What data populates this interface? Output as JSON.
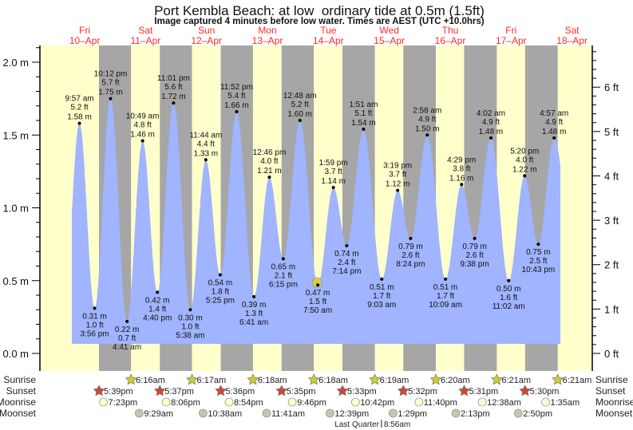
{
  "title": "Port Kembla Beach: at low  ordinary tide at 0.5m (1.5ft)",
  "subtitle": "Image captured 4 minutes before low water. Times are AEST (UTC +10.0hrs)",
  "colors": {
    "day": "#ffffcc",
    "night": "#a6a6a6",
    "tide": "#a0b4ff",
    "day_label": "#ff2a2a",
    "sunrise": "#cccc33",
    "sunset": "#cc4a33",
    "moonrise": "#ffffcc",
    "moonset": "#c8c4b0",
    "now_marker": "#d8d040"
  },
  "chart_data": {
    "type": "area",
    "title": "Port Kembla Beach: at low  ordinary tide at 0.5m (1.5ft)",
    "days": [
      {
        "dow": "Fri",
        "date": "10–Apr"
      },
      {
        "dow": "Sat",
        "date": "11–Apr"
      },
      {
        "dow": "Sun",
        "date": "12–Apr"
      },
      {
        "dow": "Mon",
        "date": "13–Apr"
      },
      {
        "dow": "Tue",
        "date": "14–Apr"
      },
      {
        "dow": "Wed",
        "date": "15–Apr"
      },
      {
        "dow": "Thu",
        "date": "16–Apr"
      },
      {
        "dow": "Fri",
        "date": "17–Apr"
      },
      {
        "dow": "Sat",
        "date": "18–Apr"
      }
    ],
    "y_left": {
      "unit": "m",
      "range": [
        -0.02,
        2.12
      ],
      "ticks": [
        "0.0 m",
        "0.5 m",
        "1.0 m",
        "1.5 m",
        "2.0 m"
      ]
    },
    "y_right": {
      "unit": "ft",
      "ticks": [
        "0 ft",
        "1 ft",
        "2 ft",
        "3 ft",
        "4 ft",
        "5 ft",
        "6 ft"
      ]
    },
    "extremes": [
      {
        "day": 0,
        "type": "high",
        "time": "9:57 am",
        "m": 1.58,
        "ft": "5.2 ft"
      },
      {
        "day": 0,
        "type": "low",
        "time": "3:56 pm",
        "m": 0.31,
        "ft": "1.0 ft"
      },
      {
        "day": 0,
        "type": "high",
        "time": "10:12 pm",
        "m": 1.75,
        "ft": "5.7 ft"
      },
      {
        "day": 1,
        "type": "low",
        "time": "4:41 am",
        "m": 0.22,
        "ft": "0.7 ft"
      },
      {
        "day": 1,
        "type": "high",
        "time": "10:49 am",
        "m": 1.46,
        "ft": "4.8 ft"
      },
      {
        "day": 1,
        "type": "low",
        "time": "4:40 pm",
        "m": 0.42,
        "ft": "1.4 ft"
      },
      {
        "day": 1,
        "type": "high",
        "time": "11:01 pm",
        "m": 1.72,
        "ft": "5.6 ft"
      },
      {
        "day": 2,
        "type": "low",
        "time": "5:38 am",
        "m": 0.3,
        "ft": "1.0 ft"
      },
      {
        "day": 2,
        "type": "high",
        "time": "11:44 am",
        "m": 1.33,
        "ft": "4.4 ft"
      },
      {
        "day": 2,
        "type": "low",
        "time": "5:25 pm",
        "m": 0.54,
        "ft": "1.8 ft"
      },
      {
        "day": 2,
        "type": "high",
        "time": "11:52 pm",
        "m": 1.66,
        "ft": "5.4 ft"
      },
      {
        "day": 3,
        "type": "low",
        "time": "6:41 am",
        "m": 0.39,
        "ft": "1.3 ft"
      },
      {
        "day": 3,
        "type": "high",
        "time": "12:46 pm",
        "m": 1.21,
        "ft": "4.0 ft"
      },
      {
        "day": 3,
        "type": "low",
        "time": "6:15 pm",
        "m": 0.65,
        "ft": "2.1 ft"
      },
      {
        "day": 4,
        "type": "high",
        "time": "12:48 am",
        "m": 1.6,
        "ft": "5.2 ft"
      },
      {
        "day": 4,
        "type": "low",
        "time": "7:50 am",
        "m": 0.47,
        "ft": "1.5 ft",
        "current": true
      },
      {
        "day": 4,
        "type": "high",
        "time": "1:59 pm",
        "m": 1.14,
        "ft": "3.7 ft"
      },
      {
        "day": 4,
        "type": "low",
        "time": "7:14 pm",
        "m": 0.74,
        "ft": "2.4 ft"
      },
      {
        "day": 5,
        "type": "high",
        "time": "1:51 am",
        "m": 1.54,
        "ft": "5.1 ft"
      },
      {
        "day": 5,
        "type": "low",
        "time": "9:03 am",
        "m": 0.51,
        "ft": "1.7 ft"
      },
      {
        "day": 5,
        "type": "high",
        "time": "3:19 pm",
        "m": 1.12,
        "ft": "3.7 ft"
      },
      {
        "day": 5,
        "type": "low",
        "time": "8:24 pm",
        "m": 0.79,
        "ft": "2.6 ft"
      },
      {
        "day": 6,
        "type": "high",
        "time": "2:58 am",
        "m": 1.5,
        "ft": "4.9 ft"
      },
      {
        "day": 6,
        "type": "low",
        "time": "10:09 am",
        "m": 0.51,
        "ft": "1.7 ft"
      },
      {
        "day": 6,
        "type": "high",
        "time": "4:29 pm",
        "m": 1.16,
        "ft": "3.8 ft"
      },
      {
        "day": 6,
        "type": "low",
        "time": "9:38 pm",
        "m": 0.79,
        "ft": "2.6 ft"
      },
      {
        "day": 7,
        "type": "high",
        "time": "4:02 am",
        "m": 1.48,
        "ft": "4.9 ft"
      },
      {
        "day": 7,
        "type": "low",
        "time": "11:02 am",
        "m": 0.5,
        "ft": "1.6 ft"
      },
      {
        "day": 7,
        "type": "high",
        "time": "5:20 pm",
        "m": 1.22,
        "ft": "4.0 ft"
      },
      {
        "day": 7,
        "type": "low",
        "time": "10:43 pm",
        "m": 0.75,
        "ft": "2.5 ft"
      },
      {
        "day": 8,
        "type": "high",
        "time": "4:57 am",
        "m": 1.48,
        "ft": "4.9 ft"
      }
    ]
  },
  "rows": {
    "sunrise_label": "Sunrise",
    "sunset_label": "Sunset",
    "moonrise_label": "Moonrise",
    "moonset_label": "Moonset",
    "sunrise": [
      {
        "day": 1,
        "time": "6:16am"
      },
      {
        "day": 2,
        "time": "6:17am"
      },
      {
        "day": 3,
        "time": "6:18am"
      },
      {
        "day": 4,
        "time": "6:18am"
      },
      {
        "day": 5,
        "time": "6:19am"
      },
      {
        "day": 6,
        "time": "6:20am"
      },
      {
        "day": 7,
        "time": "6:21am"
      },
      {
        "day": 8,
        "time": "6:21am"
      }
    ],
    "sunset": [
      {
        "day": 0,
        "time": "5:39pm"
      },
      {
        "day": 1,
        "time": "5:37pm"
      },
      {
        "day": 2,
        "time": "5:36pm"
      },
      {
        "day": 3,
        "time": "5:35pm"
      },
      {
        "day": 4,
        "time": "5:33pm"
      },
      {
        "day": 5,
        "time": "5:32pm"
      },
      {
        "day": 6,
        "time": "5:31pm"
      },
      {
        "day": 7,
        "time": "5:30pm"
      }
    ],
    "moonrise": [
      {
        "day": 0,
        "time": "7:23pm"
      },
      {
        "day": 1,
        "time": "8:06pm"
      },
      {
        "day": 2,
        "time": "8:54pm"
      },
      {
        "day": 3,
        "time": "9:46pm"
      },
      {
        "day": 4,
        "time": "10:42pm"
      },
      {
        "day": 5,
        "time": "11:40pm"
      },
      {
        "day": 7,
        "time": "12:38am"
      },
      {
        "day": 8,
        "time": "1:35am"
      }
    ],
    "moonset": [
      {
        "day": 1,
        "time": "9:29am"
      },
      {
        "day": 2,
        "time": "10:38am"
      },
      {
        "day": 3,
        "time": "11:41am"
      },
      {
        "day": 4,
        "time": "12:39pm"
      },
      {
        "day": 5,
        "time": "1:29pm"
      },
      {
        "day": 6,
        "time": "2:13pm"
      },
      {
        "day": 7,
        "time": "2:50pm"
      }
    ],
    "moon_phase": {
      "day": 5,
      "label": "Last Quarter",
      "time": "8:56am"
    }
  }
}
